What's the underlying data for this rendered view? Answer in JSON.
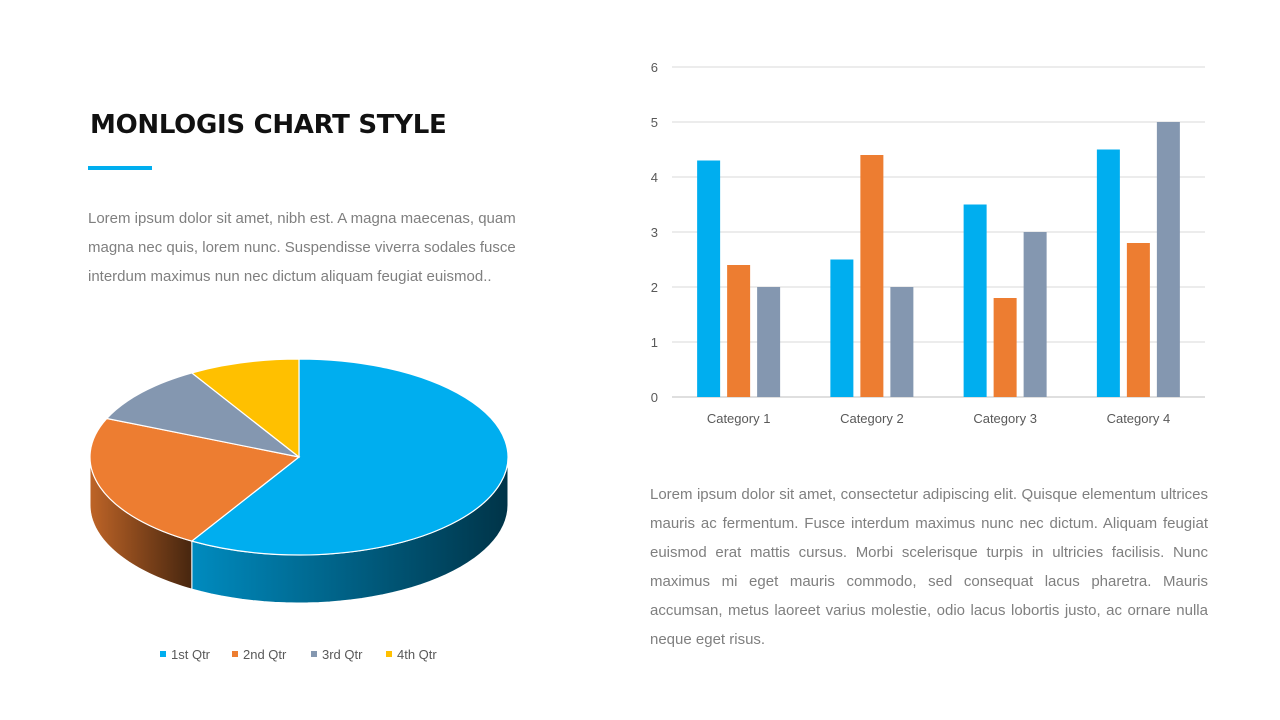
{
  "title": "MONLOGIS CHART STYLE",
  "intro": "Lorem ipsum dolor sit amet, nibh est. A magna maecenas, quam magna nec quis, lorem nunc. Suspendisse viverra sodales  fusce interdum maximus nun nec dictum aliquam feugiat euismod..",
  "body": "Lorem ipsum dolor sit amet, consectetur adipiscing elit. Quisque elementum ultrices mauris ac fermentum. Fusce interdum maximus nunc nec dictum. Aliquam feugiat euismod erat mattis cursus. Morbi scelerisque turpis in ultricies facilisis. Nunc maximus mi eget mauris commodo, sed consequat lacus pharetra. Mauris accumsan, metus laoreet varius molestie, odio lacus lobortis justo, ac ornare nulla neque eget risus.",
  "accent_color": "#00aeef",
  "chart_data": [
    {
      "type": "pie",
      "style": "3d",
      "legend_position": "bottom",
      "labels": [
        "1st Qtr",
        "2nd Qtr",
        "3rd Qtr",
        "4th Qtr"
      ],
      "values": [
        8.2,
        3.2,
        1.4,
        1.2
      ],
      "colors": [
        "#00aeef",
        "#ed7d31",
        "#8497b0",
        "#ffc000"
      ]
    },
    {
      "type": "bar",
      "categories": [
        "Category 1",
        "Category 2",
        "Category 3",
        "Category 4"
      ],
      "series": [
        {
          "values": [
            4.3,
            2.5,
            3.5,
            4.5
          ],
          "color": "#00aeef"
        },
        {
          "values": [
            2.4,
            4.4,
            1.8,
            2.8
          ],
          "color": "#ed7d31"
        },
        {
          "values": [
            2,
            2,
            3,
            5
          ],
          "color": "#8497b0"
        }
      ],
      "ylim": [
        0,
        6
      ],
      "yticks": [
        "0",
        "1",
        "2",
        "3",
        "4",
        "5",
        "6"
      ],
      "grid": true,
      "legend": "none"
    }
  ]
}
